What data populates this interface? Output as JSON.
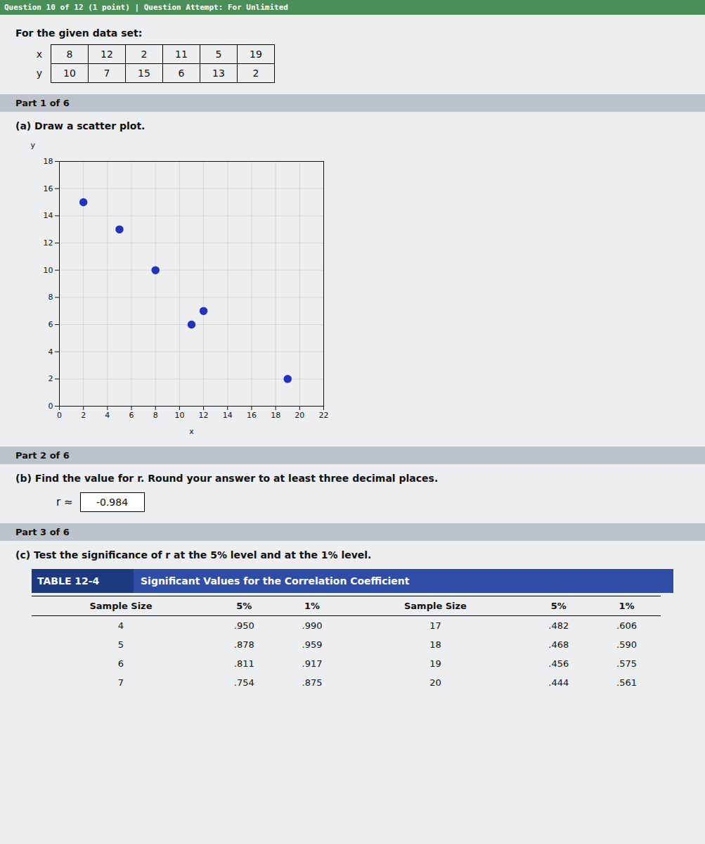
{
  "chart_data": {
    "type": "scatter",
    "x_label": "x",
    "y_label": "y",
    "x": [
      8,
      12,
      2,
      11,
      5,
      19
    ],
    "values": [
      10,
      7,
      15,
      6,
      13,
      2
    ],
    "color": "#2233bb",
    "xlim": [
      0,
      22
    ],
    "xticks": [
      0,
      2,
      4,
      6,
      8,
      10,
      12,
      14,
      16,
      18,
      20,
      22
    ],
    "ylim": [
      0,
      18
    ],
    "yticks": [
      0,
      2,
      4,
      6,
      8,
      10,
      12,
      14,
      16,
      18
    ],
    "grid": true
  },
  "header": "Question 10 of 12 (1 point)  |  Question Attempt: For Unlimited",
  "intro": "For the given data set:",
  "parts": [
    {
      "label": "Part 1 of 6",
      "question": "(a) Draw a scatter plot."
    },
    {
      "label": "Part 2 of 6",
      "question": "(b) Find the value for r. Round your answer to at least three decimal places."
    },
    {
      "label": "Part 3 of 6",
      "question": "(c) Test the significance of r at the 5% level and at the 1% level."
    }
  ],
  "r_label": "r ≈",
  "r_value": "-0.984",
  "table": {
    "tag": "TABLE 12-4",
    "title": "Significant Values for the Correlation Coefficient",
    "headers": [
      "Sample Size",
      "5%",
      "1%",
      "Sample Size",
      "5%",
      "1%"
    ],
    "rows": [
      [
        "4",
        ".950",
        ".990",
        "17",
        ".482",
        ".606"
      ],
      [
        "5",
        ".878",
        ".959",
        "18",
        ".468",
        ".590"
      ],
      [
        "6",
        ".811",
        ".917",
        "19",
        ".456",
        ".575"
      ],
      [
        "7",
        ".754",
        ".875",
        "20",
        ".444",
        ".561"
      ]
    ]
  }
}
